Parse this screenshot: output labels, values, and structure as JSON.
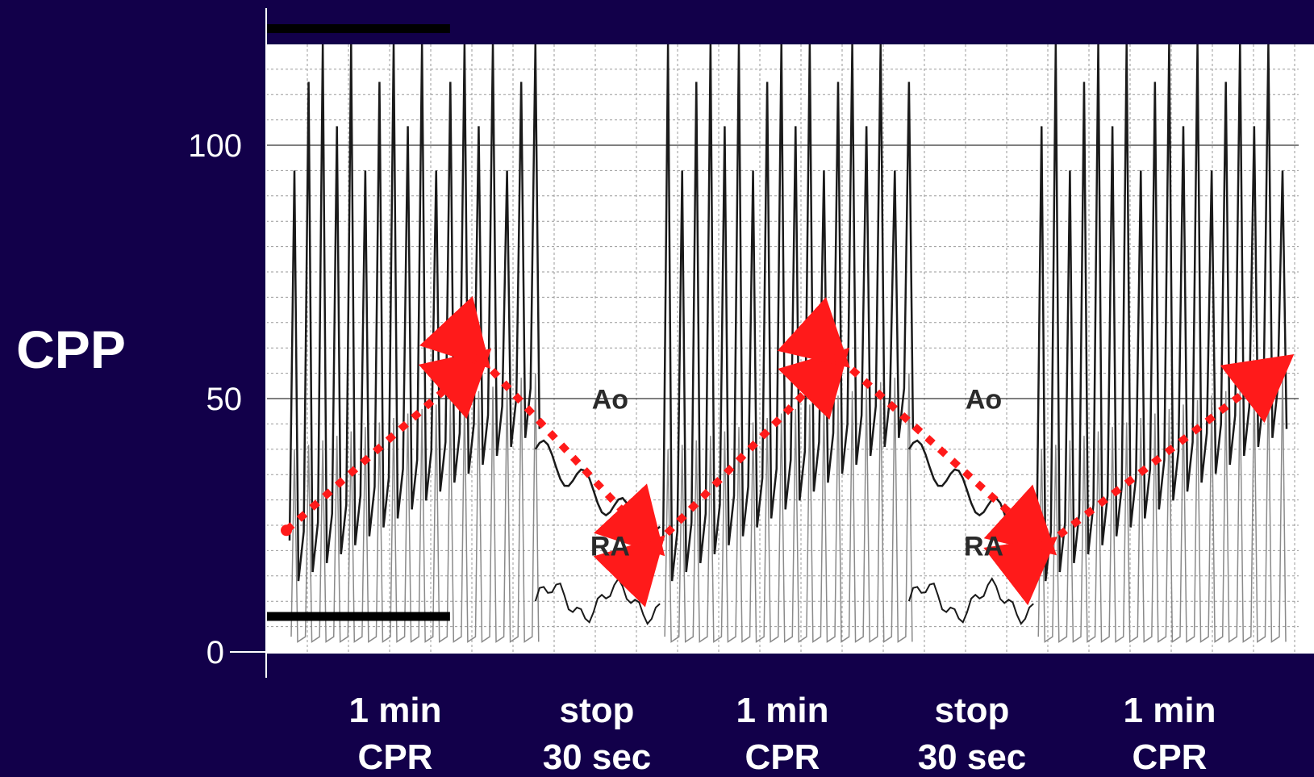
{
  "chart_data": {
    "type": "line",
    "ylabel": "CPP",
    "ylim": [
      0,
      130
    ],
    "y_ticks": [
      {
        "value": 0,
        "label": "0"
      },
      {
        "value": 50,
        "label": "50"
      },
      {
        "value": 100,
        "label": "100"
      }
    ],
    "grid": true,
    "phases": [
      {
        "line1": "1 min",
        "line2": "CPR",
        "start_min": 0.0,
        "end_min": 1.0
      },
      {
        "line1": "stop",
        "line2": "30 sec",
        "start_min": 1.0,
        "end_min": 1.5
      },
      {
        "line1": "1 min",
        "line2": "CPR",
        "start_min": 1.5,
        "end_min": 2.5
      },
      {
        "line1": "stop",
        "line2": "30 sec",
        "start_min": 2.5,
        "end_min": 3.0
      },
      {
        "line1": "1 min",
        "line2": "CPR",
        "start_min": 3.0,
        "end_min": 4.0
      }
    ],
    "trace_labels": [
      {
        "text": "Ao",
        "t_min": 1.3,
        "value": 48
      },
      {
        "text": "RA",
        "t_min": 1.3,
        "value": 19
      },
      {
        "text": "Ao",
        "t_min": 2.8,
        "value": 48
      },
      {
        "text": "RA",
        "t_min": 2.8,
        "value": 19
      }
    ],
    "cpp_trend": {
      "x_min": [
        0.0,
        0.78,
        1.48,
        2.22,
        3.05,
        4.0
      ],
      "y": [
        24,
        58,
        21,
        58,
        21,
        57
      ]
    },
    "reference_lines": [
      {
        "value": 123,
        "t_start": 0.0,
        "t_end": 0.9
      },
      {
        "value": 7,
        "t_start": 0.0,
        "t_end": 0.9
      }
    ],
    "colors": {
      "background": "#12004a",
      "plot_area": "#ffffff",
      "grid": "#9a9a9a",
      "trace": "#1a1a1a",
      "trend_arrow": "#ff1a1a",
      "text": "#ffffff"
    }
  }
}
